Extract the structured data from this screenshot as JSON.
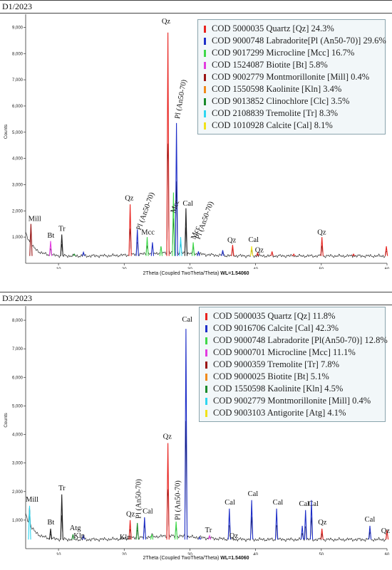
{
  "chart_data": [
    {
      "type": "line",
      "title": "D1/2023",
      "xlabel": "2Theta (Coupled TwoTheta/Theta)",
      "xlabel_suffix": "WL=1.54060",
      "ylabel": "Counts",
      "xlim": [
        5,
        60
      ],
      "ylim": [
        0,
        9500
      ],
      "x_ticks": [
        10,
        20,
        30,
        40,
        50,
        60
      ],
      "y_ticks": [
        1000,
        2000,
        3000,
        4000,
        5000,
        6000,
        7000,
        8000,
        9000
      ],
      "y_tick_labels": [
        "1,000",
        "2,000",
        "3,000",
        "4,000",
        "5,000",
        "6,000",
        "7,000",
        "8,000",
        "9,000"
      ],
      "x_tick_labels": [
        "10",
        "20",
        "30",
        "40",
        "50",
        "60"
      ],
      "legend_position": "top-right",
      "legend": [
        {
          "label": "COD 5000035 Quartz [Qz] 24.3%",
          "color": "#e8231f"
        },
        {
          "label": "COD 9000748 Labradorite[Pl (An50-70)] 29.6%",
          "color": "#1f2fc8"
        },
        {
          "label": "COD 9017299 Microcline [Mcc] 16.7%",
          "color": "#3fd84a"
        },
        {
          "label": "COD 1524087 Biotite [Bt] 5.8%",
          "color": "#e23be0"
        },
        {
          "label": "COD 9002779 Montmorillonite [Mill] 0.4%",
          "color": "#9a1414"
        },
        {
          "label": "COD 1550598 Kaolinite [Kln] 3.4%",
          "color": "#f08a1a"
        },
        {
          "label": "COD 9013852 Clinochlore [Clc] 3.5%",
          "color": "#1a8a2a"
        },
        {
          "label": "COD 2108839 Tremolite [Tr] 8.3%",
          "color": "#2fd6f0"
        },
        {
          "label": "COD 1010928 Calcite [Cal] 8.1%",
          "color": "#f0e21a"
        }
      ],
      "background": 280,
      "peaks": [
        {
          "x": 5.8,
          "y": 1500,
          "color": "#9a1414"
        },
        {
          "x": 8.8,
          "y": 850,
          "color": "#e23be0"
        },
        {
          "x": 10.5,
          "y": 1100,
          "color": "#222222"
        },
        {
          "x": 12.4,
          "y": 350,
          "color": "#1a8a2a"
        },
        {
          "x": 13.8,
          "y": 420,
          "color": "#1f2fc8"
        },
        {
          "x": 20.9,
          "y": 2250,
          "color": "#e8231f"
        },
        {
          "x": 22.0,
          "y": 1300,
          "color": "#1f2fc8"
        },
        {
          "x": 23.5,
          "y": 1000,
          "color": "#3fd84a"
        },
        {
          "x": 24.3,
          "y": 800,
          "color": "#1f2fc8"
        },
        {
          "x": 25.6,
          "y": 650,
          "color": "#3fd84a"
        },
        {
          "x": 26.65,
          "y": 8800,
          "color": "#e8231f"
        },
        {
          "x": 27.5,
          "y": 2700,
          "color": "#3fd84a"
        },
        {
          "x": 27.95,
          "y": 5350,
          "color": "#1f2fc8"
        },
        {
          "x": 28.6,
          "y": 1000,
          "color": "#2fd6f0"
        },
        {
          "x": 29.4,
          "y": 2100,
          "color": "#222222"
        },
        {
          "x": 30.5,
          "y": 800,
          "color": "#3fd84a"
        },
        {
          "x": 31.3,
          "y": 450,
          "color": "#1f2fc8"
        },
        {
          "x": 35.0,
          "y": 500,
          "color": "#1f2fc8"
        },
        {
          "x": 36.5,
          "y": 700,
          "color": "#e8231f"
        },
        {
          "x": 39.4,
          "y": 650,
          "color": "#f0e21a"
        },
        {
          "x": 40.3,
          "y": 400,
          "color": "#e8231f"
        },
        {
          "x": 42.5,
          "y": 450,
          "color": "#e8231f"
        },
        {
          "x": 45.8,
          "y": 350,
          "color": "#e8231f"
        },
        {
          "x": 50.1,
          "y": 1000,
          "color": "#e8231f"
        },
        {
          "x": 54.9,
          "y": 350,
          "color": "#e8231f"
        },
        {
          "x": 59.9,
          "y": 650,
          "color": "#e8231f"
        }
      ],
      "annotations": [
        {
          "text": "Mill",
          "x": 5.4,
          "y": 1620,
          "rotate": 0
        },
        {
          "text": "Bt",
          "x": 8.3,
          "y": 980,
          "rotate": 0
        },
        {
          "text": "Tr",
          "x": 10.0,
          "y": 1230,
          "rotate": 0
        },
        {
          "text": "Qz",
          "x": 20.1,
          "y": 2400,
          "rotate": 0
        },
        {
          "text": "Pl (An50-70)",
          "x": 22.5,
          "y": 1250,
          "rotate": -70
        },
        {
          "text": "Mcc",
          "x": 22.6,
          "y": 1100,
          "rotate": 0
        },
        {
          "text": "Qz",
          "x": 25.7,
          "y": 9150,
          "rotate": 0
        },
        {
          "text": "Pl (An50-70)",
          "x": 28.4,
          "y": 5500,
          "rotate": -80
        },
        {
          "text": "Mcc",
          "x": 27.7,
          "y": 1900,
          "rotate": -70
        },
        {
          "text": "Cal",
          "x": 28.9,
          "y": 2200,
          "rotate": 0
        },
        {
          "text": "Mcc",
          "x": 30.8,
          "y": 900,
          "rotate": -70
        },
        {
          "text": "Pl (An50-70)",
          "x": 31.5,
          "y": 900,
          "rotate": -70
        },
        {
          "text": "Qz",
          "x": 35.7,
          "y": 800,
          "rotate": 0
        },
        {
          "text": "Cal",
          "x": 38.9,
          "y": 820,
          "rotate": 0
        },
        {
          "text": "Qz",
          "x": 39.9,
          "y": 420,
          "rotate": 0
        },
        {
          "text": "Qz",
          "x": 49.4,
          "y": 1100,
          "rotate": 0
        }
      ]
    },
    {
      "type": "line",
      "title": "D3/2023",
      "xlabel": "2Theta (Coupled TwoTheta/Theta)",
      "xlabel_suffix": "WL=1.54060",
      "ylabel": "Counts",
      "xlim": [
        5,
        60
      ],
      "ylim": [
        0,
        8500
      ],
      "x_ticks": [
        10,
        20,
        30,
        40,
        50,
        60
      ],
      "y_ticks": [
        1000,
        2000,
        3000,
        4000,
        5000,
        6000,
        7000,
        8000
      ],
      "y_tick_labels": [
        "1,000",
        "2,000",
        "3,000",
        "4,000",
        "5,000",
        "6,000",
        "7,000",
        "8,000"
      ],
      "x_tick_labels": [
        "10",
        "20",
        "30",
        "40",
        "50",
        "60"
      ],
      "legend_position": "top-right",
      "legend": [
        {
          "label": "COD 5000035 Quartz [Qz] 11.8%",
          "color": "#e8231f"
        },
        {
          "label": "COD 9016706 Calcite [Cal] 42.3%",
          "color": "#1f2fc8"
        },
        {
          "label": "COD 9000748 Labradorite [Pl(An50-70)] 12.8%",
          "color": "#3fd84a"
        },
        {
          "label": "COD 9000701 Microcline [Mcc] 11.1%",
          "color": "#e23be0"
        },
        {
          "label": "COD 9000359 Tremolite [Tr] 7.8%",
          "color": "#9a1414"
        },
        {
          "label": "COD 9000025 Biotite [Bt] 5.1%",
          "color": "#f08a1a"
        },
        {
          "label": "COD 1550598 Kaolinite [Kln] 4.5%",
          "color": "#1a8a2a"
        },
        {
          "label": "COD 9002779 Montmorillonite [Mill] 0.4%",
          "color": "#2fd6f0"
        },
        {
          "label": "COD 9003103 Antigorite [Atg] 4.1%",
          "color": "#f0e21a"
        }
      ],
      "background": 320,
      "peaks": [
        {
          "x": 5.6,
          "y": 1500,
          "color": "#2fd6f0"
        },
        {
          "x": 8.8,
          "y": 700,
          "color": "#222222"
        },
        {
          "x": 10.5,
          "y": 1900,
          "color": "#222222"
        },
        {
          "x": 12.2,
          "y": 500,
          "color": "#1a8a2a"
        },
        {
          "x": 13.8,
          "y": 450,
          "color": "#1f2fc8"
        },
        {
          "x": 20.9,
          "y": 1000,
          "color": "#e8231f"
        },
        {
          "x": 22.0,
          "y": 900,
          "color": "#1a8a2a"
        },
        {
          "x": 23.1,
          "y": 1100,
          "color": "#1f2fc8"
        },
        {
          "x": 24.2,
          "y": 500,
          "color": "#3fd84a"
        },
        {
          "x": 26.65,
          "y": 3700,
          "color": "#e8231f"
        },
        {
          "x": 27.9,
          "y": 950,
          "color": "#3fd84a"
        },
        {
          "x": 29.4,
          "y": 7700,
          "color": "#1f2fc8"
        },
        {
          "x": 31.5,
          "y": 400,
          "color": "#1f2fc8"
        },
        {
          "x": 33.0,
          "y": 450,
          "color": "#e23be0"
        },
        {
          "x": 36.0,
          "y": 1400,
          "color": "#1f2fc8"
        },
        {
          "x": 39.4,
          "y": 1700,
          "color": "#1f2fc8"
        },
        {
          "x": 43.2,
          "y": 1400,
          "color": "#1f2fc8"
        },
        {
          "x": 47.1,
          "y": 800,
          "color": "#1f2fc8"
        },
        {
          "x": 47.6,
          "y": 1350,
          "color": "#1f2fc8"
        },
        {
          "x": 48.5,
          "y": 1700,
          "color": "#1f2fc8"
        },
        {
          "x": 50.1,
          "y": 700,
          "color": "#e8231f"
        },
        {
          "x": 57.4,
          "y": 800,
          "color": "#1f2fc8"
        },
        {
          "x": 60.0,
          "y": 650,
          "color": "#e8231f"
        }
      ],
      "annotations": [
        {
          "text": "Mill",
          "x": 5.0,
          "y": 1650,
          "rotate": 0
        },
        {
          "text": "Bt",
          "x": 8.3,
          "y": 850,
          "rotate": 0
        },
        {
          "text": "Tr",
          "x": 10.0,
          "y": 2050,
          "rotate": 0
        },
        {
          "text": "Atg",
          "x": 11.7,
          "y": 650,
          "rotate": 0
        },
        {
          "text": "Kln",
          "x": 12.3,
          "y": 380,
          "rotate": 0
        },
        {
          "text": "Kln",
          "x": 19.3,
          "y": 320,
          "rotate": 0
        },
        {
          "text": "Qz",
          "x": 20.3,
          "y": 1130,
          "rotate": 0
        },
        {
          "text": "Pl (An50-70)",
          "x": 22.5,
          "y": 1050,
          "rotate": -90
        },
        {
          "text": "Cal",
          "x": 22.8,
          "y": 1230,
          "rotate": 0
        },
        {
          "text": "Qz",
          "x": 25.9,
          "y": 3850,
          "rotate": 0
        },
        {
          "text": "Pl (An50-70)",
          "x": 28.5,
          "y": 1000,
          "rotate": -90
        },
        {
          "text": "Cal",
          "x": 28.8,
          "y": 7950,
          "rotate": 0
        },
        {
          "text": "Tr",
          "x": 32.3,
          "y": 570,
          "rotate": 0
        },
        {
          "text": "Qz",
          "x": 36.0,
          "y": 380,
          "rotate": 0
        },
        {
          "text": "Cal",
          "x": 35.3,
          "y": 1550,
          "rotate": 0
        },
        {
          "text": "Cal",
          "x": 38.8,
          "y": 1850,
          "rotate": 0
        },
        {
          "text": "Cal",
          "x": 42.6,
          "y": 1550,
          "rotate": 0
        },
        {
          "text": "Cal",
          "x": 46.6,
          "y": 1500,
          "rotate": 0
        },
        {
          "text": "Cal",
          "x": 48.0,
          "y": 1500,
          "rotate": 0
        },
        {
          "text": "Qz",
          "x": 49.5,
          "y": 850,
          "rotate": 0
        },
        {
          "text": "Cal",
          "x": 56.6,
          "y": 950,
          "rotate": 0
        },
        {
          "text": "Qz",
          "x": 59.1,
          "y": 550,
          "rotate": 0
        }
      ]
    }
  ]
}
